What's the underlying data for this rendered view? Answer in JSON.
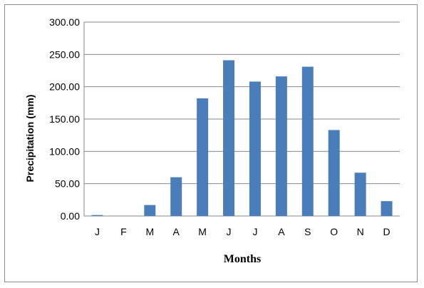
{
  "chart_data": {
    "type": "bar",
    "categories": [
      "J",
      "F",
      "M",
      "A",
      "M",
      "J",
      "J",
      "A",
      "S",
      "O",
      "N",
      "D"
    ],
    "values": [
      1.5,
      0.0,
      17.0,
      60.0,
      182.0,
      241.0,
      208.0,
      216.0,
      231.0,
      133.0,
      67.0,
      23.0
    ],
    "title": "",
    "xlabel": "Months",
    "ylabel": "Precipitation (mm)",
    "ylim": [
      0,
      300
    ],
    "yticks": [
      "0.00",
      "50.00",
      "100.00",
      "150.00",
      "200.00",
      "250.00",
      "300.00"
    ],
    "grid": true,
    "bar_color": "#4a7ebb",
    "grid_color": "#878787"
  }
}
